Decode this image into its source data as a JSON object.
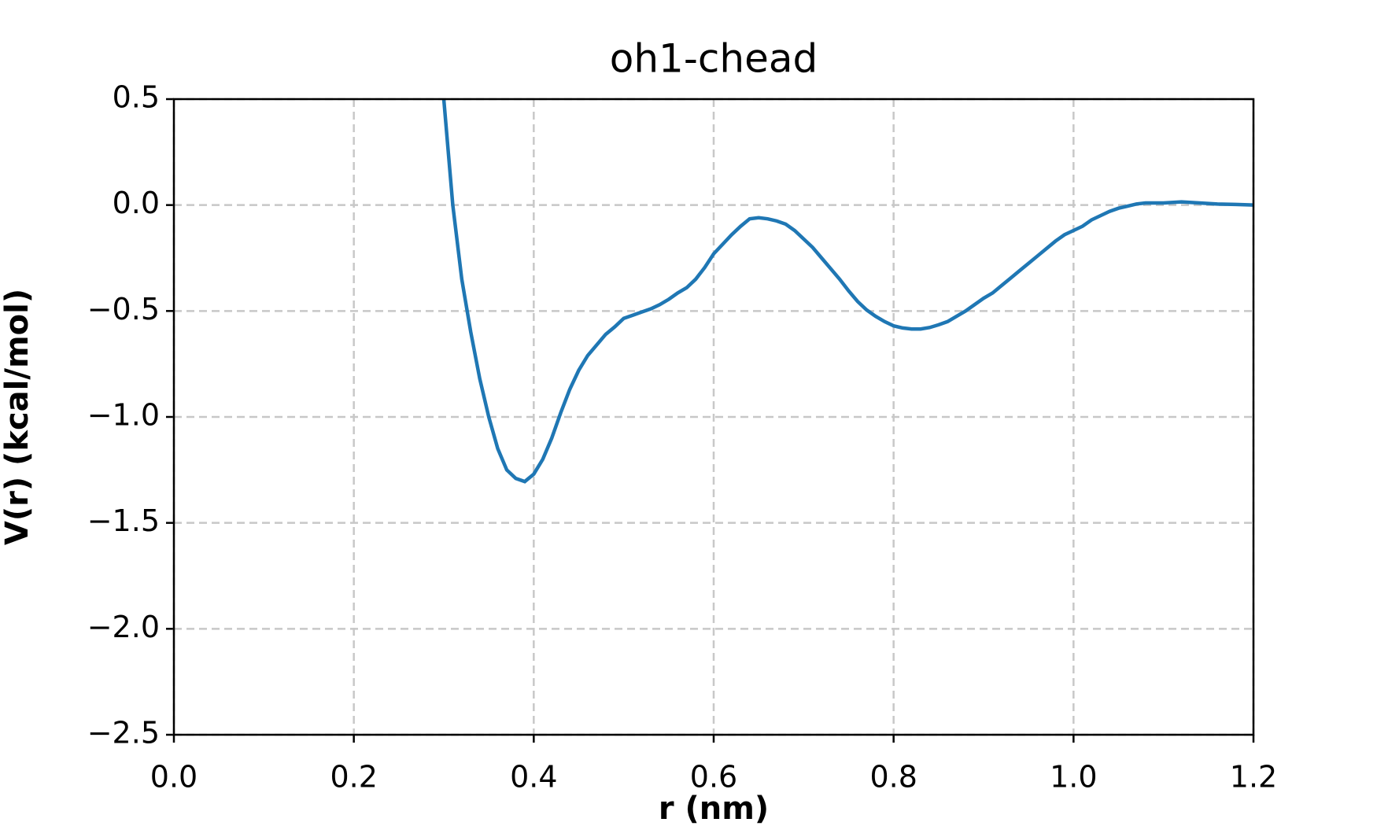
{
  "chart_data": {
    "type": "line",
    "title": "oh1-chead",
    "xlabel": "r (nm)",
    "ylabel": "V(r) (kcal/mol)",
    "x": [
      0.3,
      0.31,
      0.32,
      0.33,
      0.34,
      0.35,
      0.36,
      0.37,
      0.38,
      0.39,
      0.4,
      0.41,
      0.42,
      0.43,
      0.44,
      0.45,
      0.46,
      0.47,
      0.48,
      0.49,
      0.5,
      0.51,
      0.52,
      0.53,
      0.54,
      0.55,
      0.56,
      0.57,
      0.58,
      0.59,
      0.6,
      0.61,
      0.62,
      0.63,
      0.64,
      0.65,
      0.66,
      0.67,
      0.68,
      0.69,
      0.7,
      0.71,
      0.72,
      0.73,
      0.74,
      0.75,
      0.76,
      0.77,
      0.78,
      0.79,
      0.8,
      0.81,
      0.82,
      0.83,
      0.84,
      0.85,
      0.86,
      0.87,
      0.88,
      0.89,
      0.9,
      0.91,
      0.92,
      0.93,
      0.94,
      0.95,
      0.96,
      0.97,
      0.98,
      0.99,
      1.0,
      1.01,
      1.02,
      1.03,
      1.04,
      1.05,
      1.06,
      1.07,
      1.08,
      1.09,
      1.1,
      1.12,
      1.14,
      1.16,
      1.18,
      1.2
    ],
    "series": [
      {
        "name": "oh1-chead",
        "color": "#1f77b4",
        "values": [
          0.5,
          0.0,
          -0.35,
          -0.6,
          -0.82,
          -1.0,
          -1.15,
          -1.25,
          -1.29,
          -1.305,
          -1.27,
          -1.2,
          -1.1,
          -0.98,
          -0.87,
          -0.78,
          -0.71,
          -0.66,
          -0.61,
          -0.575,
          -0.535,
          -0.52,
          -0.505,
          -0.49,
          -0.47,
          -0.445,
          -0.415,
          -0.39,
          -0.35,
          -0.295,
          -0.23,
          -0.185,
          -0.14,
          -0.1,
          -0.065,
          -0.06,
          -0.065,
          -0.075,
          -0.09,
          -0.12,
          -0.16,
          -0.2,
          -0.25,
          -0.3,
          -0.35,
          -0.405,
          -0.455,
          -0.495,
          -0.525,
          -0.55,
          -0.57,
          -0.58,
          -0.585,
          -0.585,
          -0.578,
          -0.565,
          -0.55,
          -0.525,
          -0.5,
          -0.47,
          -0.44,
          -0.415,
          -0.38,
          -0.345,
          -0.31,
          -0.275,
          -0.24,
          -0.205,
          -0.17,
          -0.14,
          -0.12,
          -0.1,
          -0.07,
          -0.05,
          -0.03,
          -0.015,
          -0.005,
          0.005,
          0.01,
          0.01,
          0.01,
          0.015,
          0.01,
          0.005,
          0.003,
          0.0
        ]
      }
    ],
    "xlim": [
      0,
      1.2
    ],
    "ylim": [
      -2.5,
      0.5
    ],
    "xticks": [
      {
        "value": 0,
        "label": "0.0"
      },
      0.2,
      0.4,
      0.6,
      0.8,
      {
        "value": 1,
        "label": "1.0"
      },
      1.2
    ],
    "yticks": [
      {
        "value": -2.5,
        "label": "−2.5"
      },
      {
        "value": -2,
        "label": "−2.0"
      },
      {
        "value": -1.5,
        "label": "−1.5"
      },
      {
        "value": -1,
        "label": "−1.0"
      },
      {
        "value": -0.5,
        "label": "−0.5"
      },
      {
        "value": 0,
        "label": "0.0"
      },
      0.5
    ],
    "grid": true
  }
}
